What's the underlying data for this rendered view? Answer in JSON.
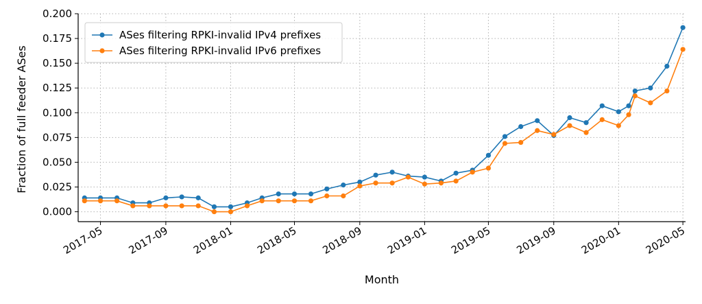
{
  "chart_data": {
    "type": "line",
    "xlabel": "Month",
    "ylabel": "Fraction of full feeder ASes",
    "xlim": [
      "2017-03-20",
      "2020-05-06"
    ],
    "ylim": [
      -0.01,
      0.2
    ],
    "grid": true,
    "grid_style": "dotted",
    "legend_position": "top-left",
    "x_ticks": [
      "2017-05",
      "2017-09",
      "2018-01",
      "2018-05",
      "2018-09",
      "2019-01",
      "2019-05",
      "2019-09",
      "2020-01",
      "2020-05"
    ],
    "y_ticks": [
      "0.000",
      "0.025",
      "0.050",
      "0.075",
      "0.100",
      "0.125",
      "0.150",
      "0.175",
      "0.200"
    ],
    "y_tick_values": [
      0,
      0.025,
      0.05,
      0.075,
      0.1,
      0.125,
      0.15,
      0.175,
      0.2
    ],
    "x": [
      "2017-04-01",
      "2017-05-01",
      "2017-06-01",
      "2017-07-01",
      "2017-08-01",
      "2017-09-01",
      "2017-10-01",
      "2017-11-01",
      "2017-12-01",
      "2018-01-01",
      "2018-02-01",
      "2018-03-01",
      "2018-04-01",
      "2018-05-01",
      "2018-06-01",
      "2018-07-01",
      "2018-08-01",
      "2018-09-01",
      "2018-10-01",
      "2018-11-01",
      "2018-12-01",
      "2019-01-01",
      "2019-02-01",
      "2019-03-01",
      "2019-04-01",
      "2019-05-01",
      "2019-06-01",
      "2019-07-01",
      "2019-08-01",
      "2019-09-01",
      "2019-10-01",
      "2019-11-01",
      "2019-12-01",
      "2020-01-01",
      "2020-01-20",
      "2020-02-01",
      "2020-03-01",
      "2020-04-01",
      "2020-05-01"
    ],
    "series": [
      {
        "name": "ASes filtering RPKI-invalid IPv4 prefixes",
        "color": "#1f77b4",
        "values": [
          0.014,
          0.014,
          0.014,
          0.009,
          0.009,
          0.014,
          0.015,
          0.014,
          0.005,
          0.005,
          0.009,
          0.014,
          0.018,
          0.018,
          0.018,
          0.023,
          0.027,
          0.03,
          0.037,
          0.04,
          0.036,
          0.035,
          0.031,
          0.039,
          0.042,
          0.057,
          0.076,
          0.086,
          0.092,
          0.077,
          0.095,
          0.09,
          0.107,
          0.101,
          0.107,
          0.122,
          0.125,
          0.147,
          0.186
        ]
      },
      {
        "name": "ASes filtering RPKI-invalid IPv6 prefixes",
        "color": "#ff7f0e",
        "values": [
          0.011,
          0.011,
          0.011,
          0.006,
          0.006,
          0.006,
          0.006,
          0.006,
          0.0,
          0.0,
          0.006,
          0.011,
          0.011,
          0.011,
          0.011,
          0.016,
          0.016,
          0.026,
          0.029,
          0.029,
          0.035,
          0.028,
          0.029,
          0.031,
          0.04,
          0.044,
          0.069,
          0.07,
          0.082,
          0.078,
          0.087,
          0.08,
          0.093,
          0.087,
          0.098,
          0.117,
          0.11,
          0.122,
          0.164
        ]
      }
    ]
  }
}
